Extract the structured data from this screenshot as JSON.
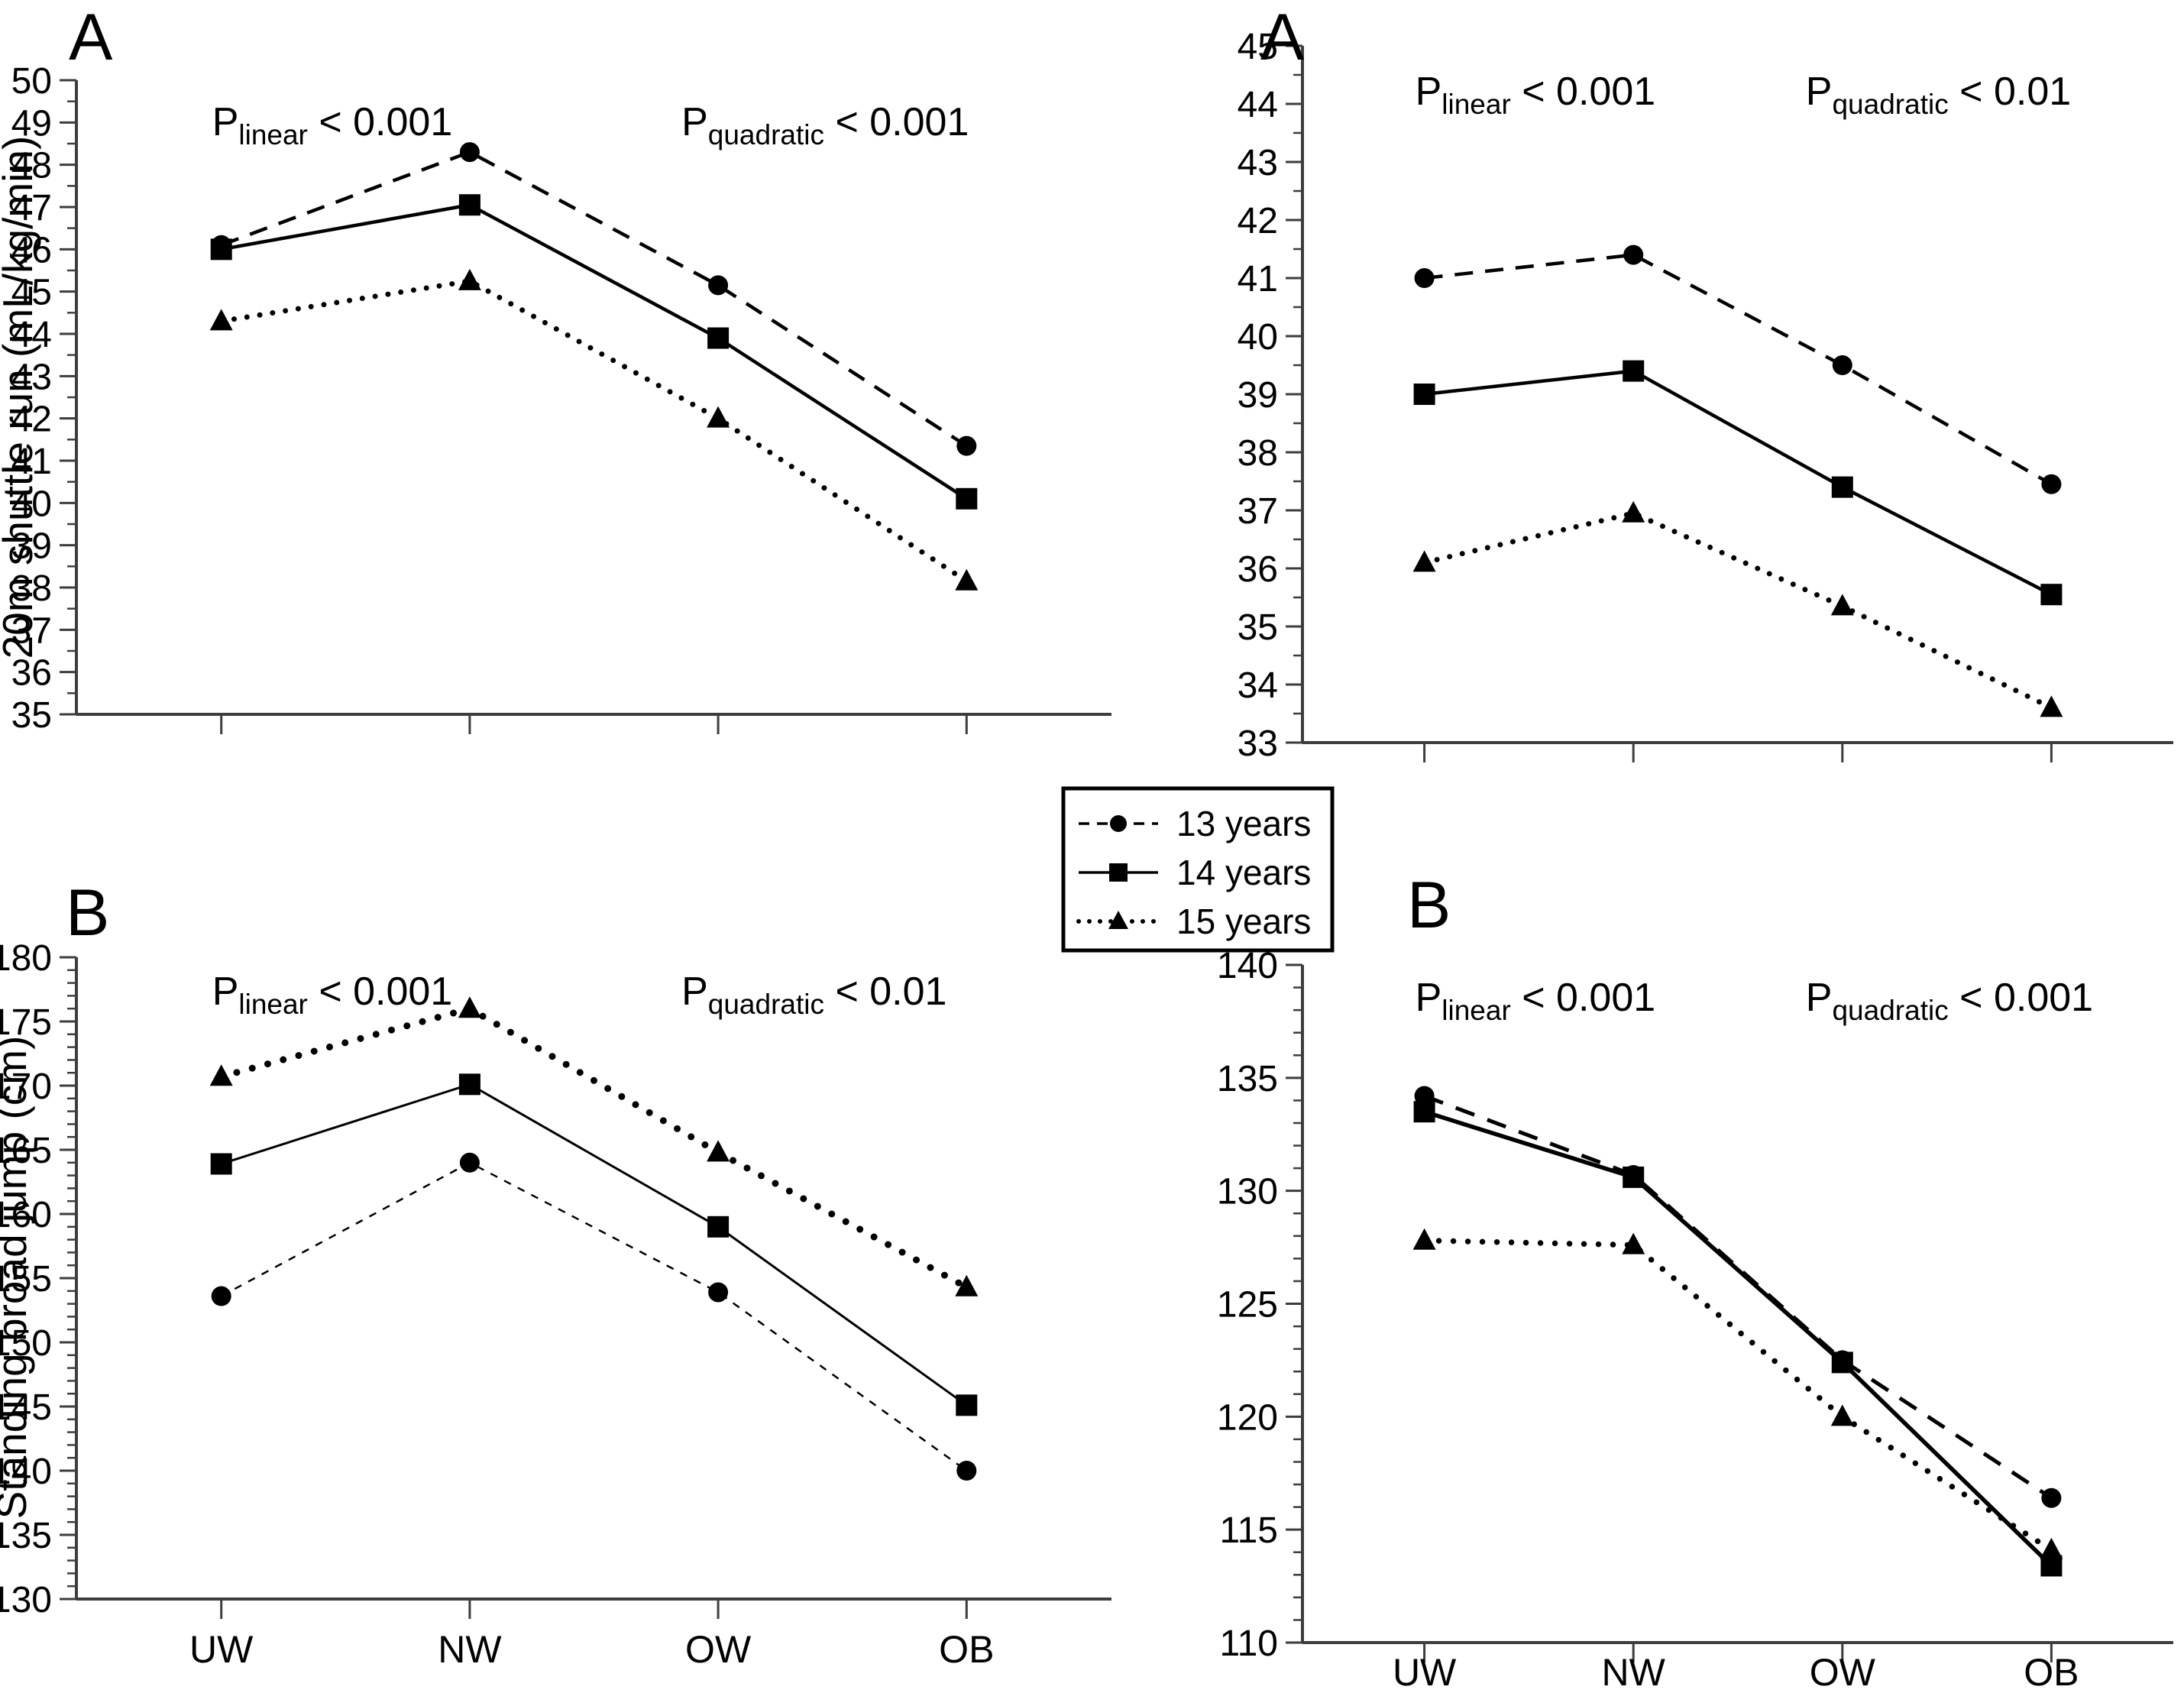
{
  "figure": {
    "background": "#ffffff",
    "ink_color": "#000000",
    "axis_color": "#3d3d3d"
  },
  "legend": {
    "entries": [
      {
        "label": "13 years",
        "marker": "circle",
        "line": "dashed"
      },
      {
        "label": "14 years",
        "marker": "square",
        "line": "solid"
      },
      {
        "label": "15 years",
        "marker": "triangle",
        "line": "dotted"
      }
    ]
  },
  "chart_data": [
    {
      "id": "panel-top-left",
      "type": "line",
      "panel_letter": "A",
      "ylabel": "20m shuttle run (mL/kg/min)",
      "ylim": [
        35,
        50
      ],
      "ytick_major": 1,
      "ytick_minor": 0.5,
      "categories": [
        "UW",
        "NW",
        "OW",
        "OB"
      ],
      "x_labels_visible": false,
      "grid": false,
      "annotations": [
        {
          "p": "P",
          "sub": "linear",
          "value": "< 0.001",
          "anchor": "first-category"
        },
        {
          "p": "P",
          "sub": "quadratic",
          "value": "< 0.001",
          "anchor": "third-category"
        }
      ],
      "series": [
        {
          "name": "13 years",
          "marker": "circle",
          "line": "dashed",
          "values": [
            46.1,
            48.3,
            45.15,
            41.35
          ]
        },
        {
          "name": "14 years",
          "marker": "square",
          "line": "solid",
          "values": [
            46.0,
            47.05,
            43.9,
            40.1
          ]
        },
        {
          "name": "15 years",
          "marker": "triangle",
          "line": "dotted",
          "values": [
            44.3,
            45.25,
            42.0,
            38.15
          ]
        }
      ]
    },
    {
      "id": "panel-top-right",
      "type": "line",
      "panel_letter": "A",
      "ylabel": "",
      "ylim": [
        33,
        45
      ],
      "ytick_major": 1,
      "ytick_minor": 0.5,
      "categories": [
        "UW",
        "NW",
        "OW",
        "OB"
      ],
      "x_labels_visible": false,
      "grid": false,
      "annotations": [
        {
          "p": "P",
          "sub": "linear",
          "value": "< 0.001",
          "anchor": "first-category"
        },
        {
          "p": "P",
          "sub": "quadratic",
          "value": "< 0.01",
          "anchor": "third-category"
        }
      ],
      "series": [
        {
          "name": "13 years",
          "marker": "circle",
          "line": "dashed",
          "values": [
            41.0,
            41.4,
            39.5,
            37.45
          ]
        },
        {
          "name": "14 years",
          "marker": "square",
          "line": "solid",
          "values": [
            39.0,
            39.4,
            37.4,
            35.55
          ]
        },
        {
          "name": "15 years",
          "marker": "triangle",
          "line": "dotted",
          "values": [
            36.1,
            36.95,
            35.35,
            33.6
          ]
        }
      ]
    },
    {
      "id": "panel-bottom-left",
      "type": "line",
      "panel_letter": "B",
      "ylabel": "Standing broad jump (cm)",
      "ylim": [
        130,
        180
      ],
      "ytick_major": 5,
      "ytick_minor": 1,
      "categories": [
        "UW",
        "NW",
        "OW",
        "OB"
      ],
      "x_labels_visible": true,
      "grid": false,
      "annotations": [
        {
          "p": "P",
          "sub": "linear",
          "value": "< 0.001",
          "anchor": "first-category"
        },
        {
          "p": "P",
          "sub": "quadratic",
          "value": "< 0.01",
          "anchor": "third-category"
        }
      ],
      "series": [
        {
          "name": "13 years",
          "marker": "circle",
          "line": "dashed",
          "values": [
            153.6,
            164.0,
            153.9,
            140.0
          ]
        },
        {
          "name": "14 years",
          "marker": "square",
          "line": "solid",
          "values": [
            163.9,
            170.1,
            159.0,
            145.1
          ]
        },
        {
          "name": "15 years",
          "marker": "triangle",
          "line": "dotted",
          "values": [
            170.7,
            176.0,
            164.8,
            154.3
          ]
        }
      ]
    },
    {
      "id": "panel-bottom-right",
      "type": "line",
      "panel_letter": "B",
      "ylabel": "",
      "ylim": [
        110,
        140
      ],
      "ytick_major": 5,
      "ytick_minor": 1,
      "categories": [
        "UW",
        "NW",
        "OW",
        "OB"
      ],
      "x_labels_visible": true,
      "grid": false,
      "annotations": [
        {
          "p": "P",
          "sub": "linear",
          "value": "< 0.001",
          "anchor": "first-category"
        },
        {
          "p": "P",
          "sub": "quadratic",
          "value": "< 0.001",
          "anchor": "third-category"
        }
      ],
      "series": [
        {
          "name": "13 years",
          "marker": "circle",
          "line": "dashed",
          "values": [
            134.2,
            130.7,
            122.5,
            116.4
          ]
        },
        {
          "name": "14 years",
          "marker": "square",
          "line": "solid",
          "values": [
            133.5,
            130.6,
            122.4,
            113.4
          ]
        },
        {
          "name": "15 years",
          "marker": "triangle",
          "line": "dotted",
          "values": [
            127.8,
            127.6,
            120.0,
            114.1
          ]
        }
      ]
    }
  ]
}
